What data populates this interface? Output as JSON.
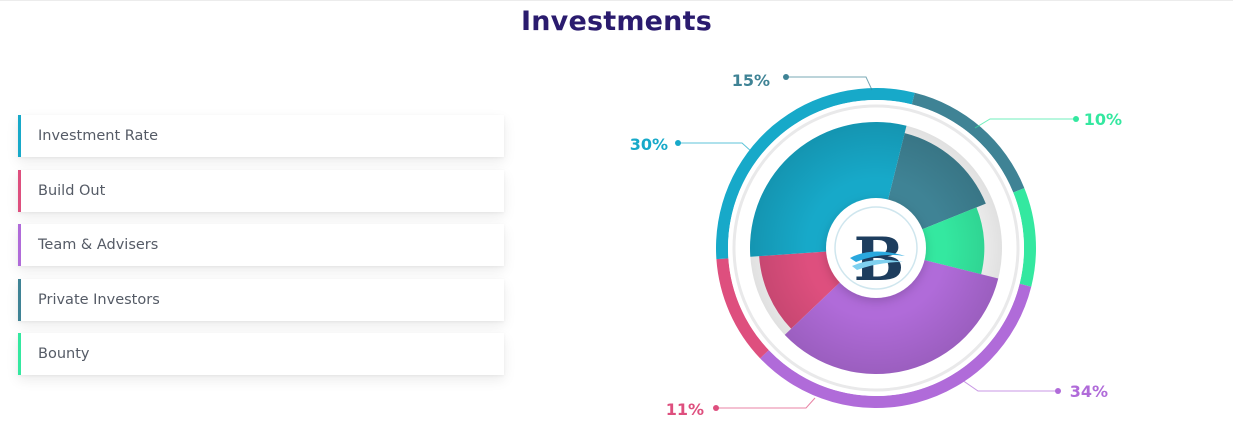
{
  "page": {
    "title": "Investments"
  },
  "legend": {
    "items": [
      {
        "label": "Investment Rate",
        "color": "#17a9c9"
      },
      {
        "label": "Build Out",
        "color": "#de4f7e"
      },
      {
        "label": "Team & Advisers",
        "color": "#b06bd9"
      },
      {
        "label": "Private Investors",
        "color": "#3f8395"
      },
      {
        "label": "Bounty",
        "color": "#34e8a0"
      }
    ]
  },
  "chart_data": {
    "type": "pie",
    "slices": [
      {
        "value": 15,
        "label": "15%",
        "color": "#3f8395"
      },
      {
        "value": 10,
        "label": "10%",
        "color": "#34e8a0"
      },
      {
        "value": 34,
        "label": "34%",
        "color": "#b06bd9"
      },
      {
        "value": 11,
        "label": "11%",
        "color": "#de4f7e"
      },
      {
        "value": 30,
        "label": "30%",
        "color": "#17a9c9"
      }
    ],
    "center_logo": "B"
  }
}
